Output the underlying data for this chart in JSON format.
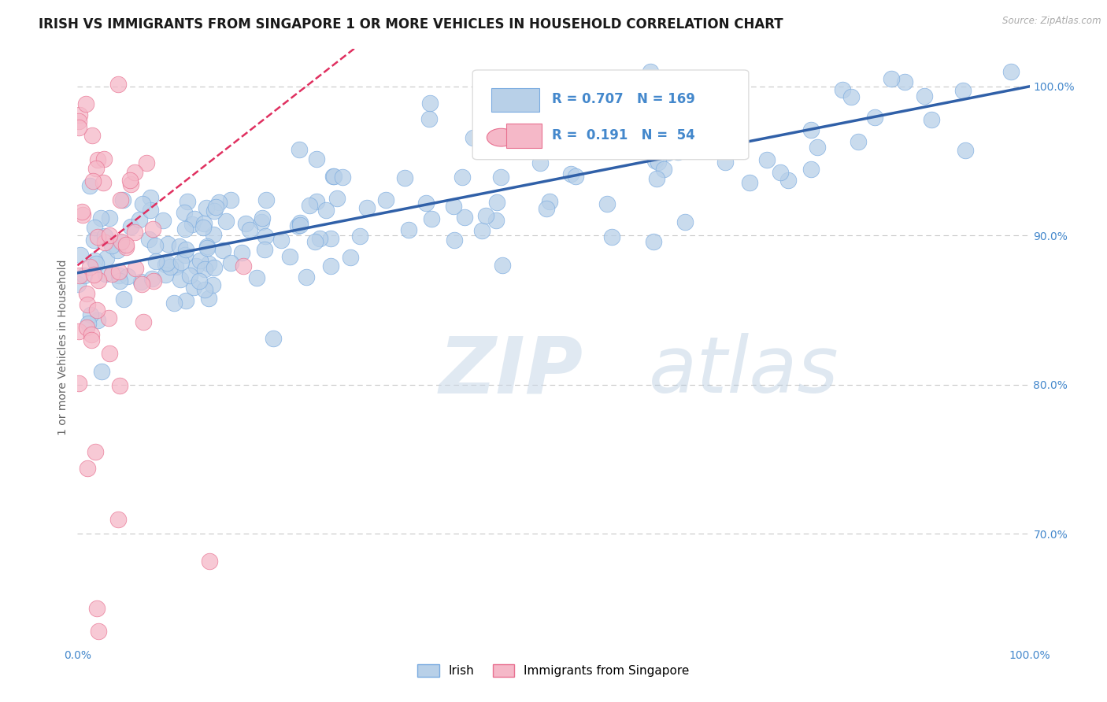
{
  "title": "IRISH VS IMMIGRANTS FROM SINGAPORE 1 OR MORE VEHICLES IN HOUSEHOLD CORRELATION CHART",
  "ylabel": "1 or more Vehicles in Household",
  "source_text": "Source: ZipAtlas.com",
  "watermark_zip": "ZIP",
  "watermark_atlas": "atlas",
  "xlim": [
    0.0,
    1.0
  ],
  "ylim": [
    0.625,
    1.025
  ],
  "irish_R": 0.707,
  "irish_N": 169,
  "singapore_R": 0.191,
  "singapore_N": 54,
  "irish_color": "#b8d0e8",
  "irish_edge_color": "#7aabe0",
  "singapore_color": "#f5b8c8",
  "singapore_edge_color": "#e87090",
  "irish_line_color": "#3060a8",
  "singapore_line_color": "#e03060",
  "legend_label_irish": "Irish",
  "legend_label_singapore": "Immigrants from Singapore",
  "background_color": "#ffffff",
  "grid_color": "#c8c8c8",
  "title_fontsize": 12,
  "axis_label_fontsize": 10,
  "tick_fontsize": 10,
  "tick_color": "#4488cc",
  "ytick_labels_right": true,
  "irish_seed": 10,
  "singapore_seed": 7
}
